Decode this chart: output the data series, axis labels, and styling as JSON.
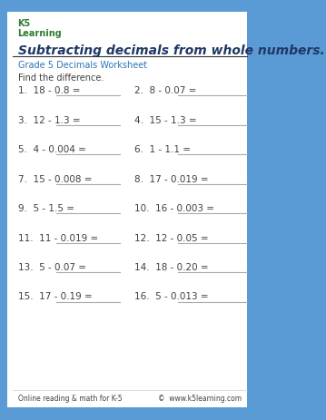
{
  "title": "Subtracting decimals from whole numbers.",
  "subtitle": "Grade 5 Decimals Worksheet",
  "instruction": "Find the difference.",
  "problems": [
    [
      "1.  18 - 0.8 =",
      "2.  8 - 0.07 ="
    ],
    [
      "3.  12 - 1.3 =",
      "4.  15 - 1.3 ="
    ],
    [
      "5.  4 - 0.004 =",
      "6.  1 - 1.1 ="
    ],
    [
      "7.  15 - 0.008 =",
      "8.  17 - 0.019 ="
    ],
    [
      "9.  5 - 1.5 =",
      "10.  16 - 0.003 ="
    ],
    [
      "11.  11 - 0.019 =",
      "12.  12 - 0.05 ="
    ],
    [
      "13.  5 - 0.07 =",
      "14.  18 - 0.20 ="
    ],
    [
      "15.  17 - 0.19 =",
      "16.  5 - 0.013 ="
    ]
  ],
  "footer_left": "Online reading & math for K-5",
  "footer_right": "©  www.k5learning.com",
  "border_color": "#5b9bd5",
  "title_color": "#1f3864",
  "subtitle_color": "#2e75b6",
  "text_color": "#404040",
  "line_color": "#aaaaaa",
  "background": "#ffffff"
}
